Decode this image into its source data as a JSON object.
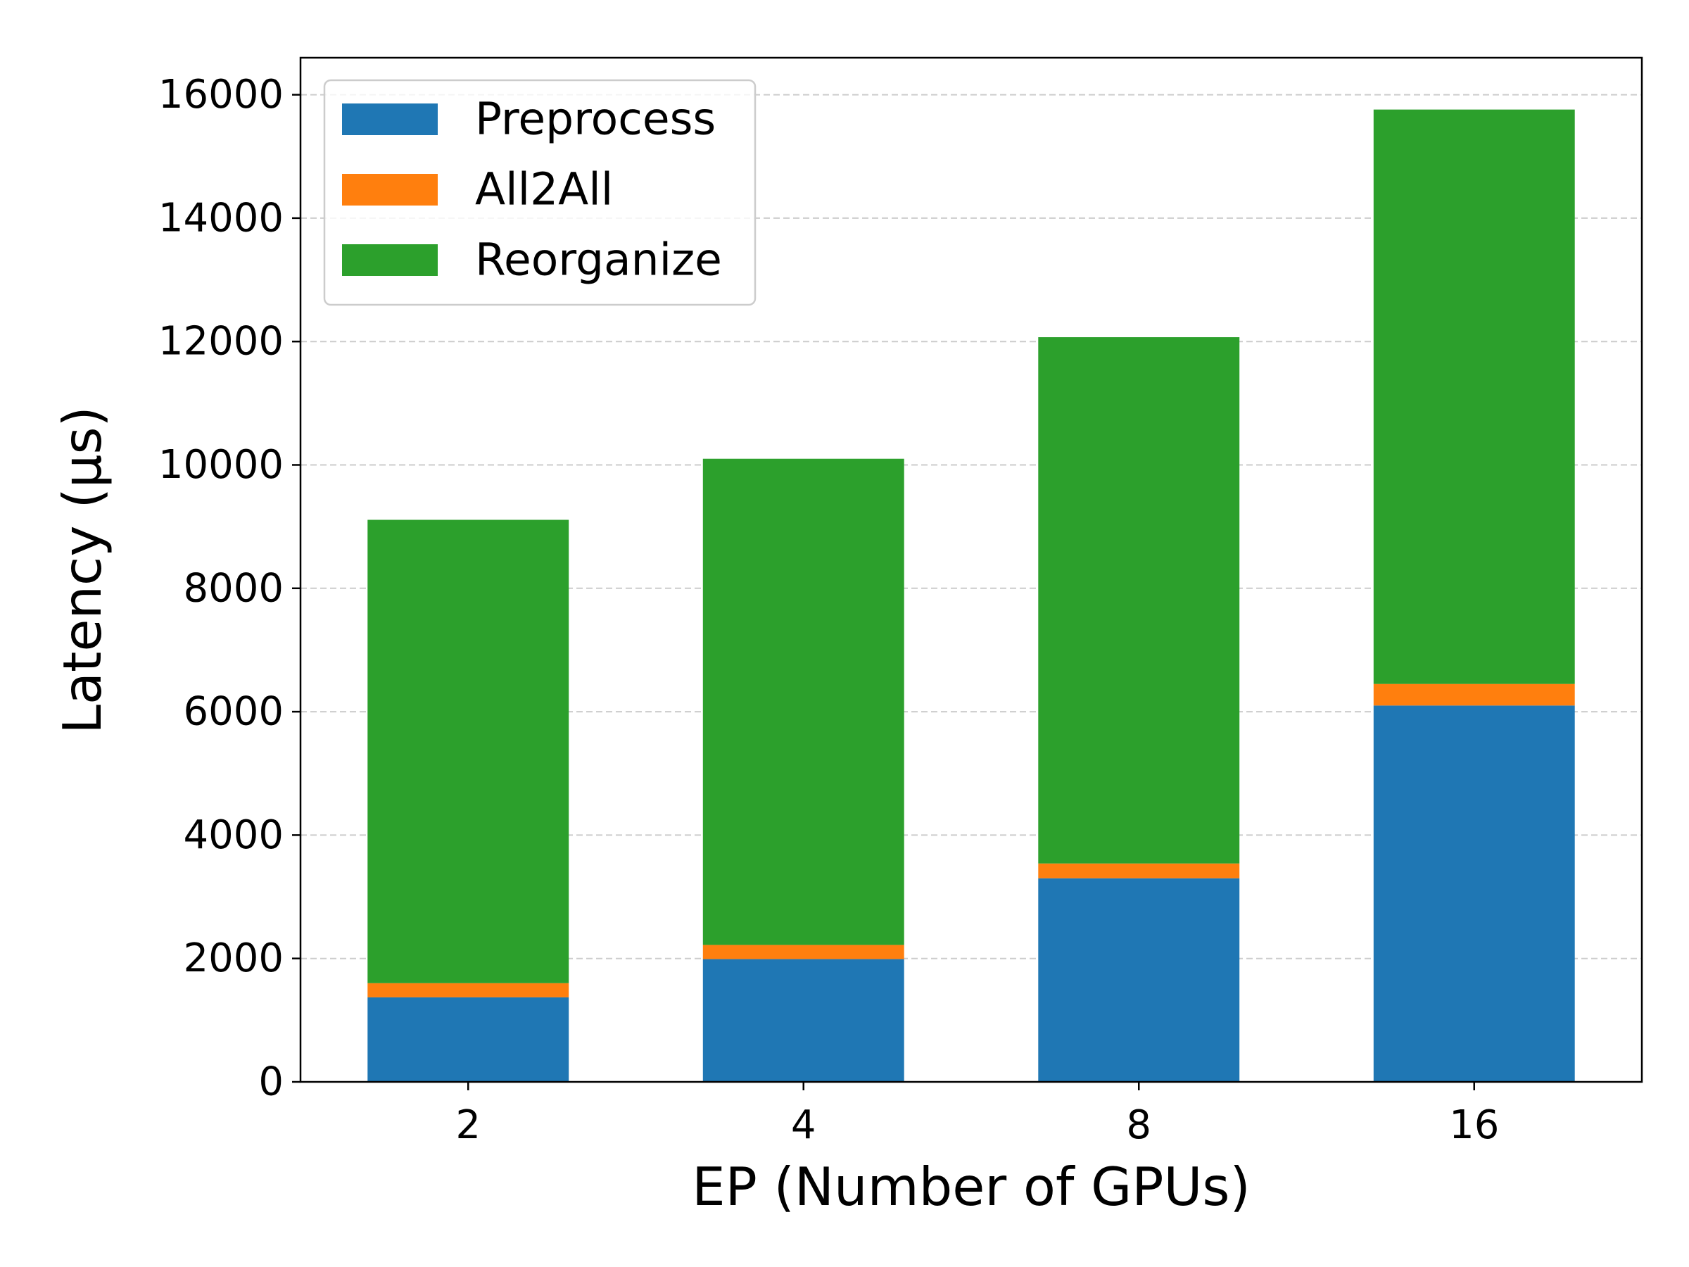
{
  "chart_data": {
    "type": "bar",
    "stacked": true,
    "title": "",
    "xlabel": "EP (Number of GPUs)",
    "ylabel": "Latency (µs)",
    "categories": [
      "2",
      "4",
      "8",
      "16"
    ],
    "series": [
      {
        "name": "Preprocess",
        "color": "#1f77b4",
        "values": [
          1370,
          1990,
          3300,
          6100
        ]
      },
      {
        "name": "All2All",
        "color": "#ff7f0e",
        "values": [
          230,
          230,
          240,
          350
        ]
      },
      {
        "name": "Reorganize",
        "color": "#2ca02c",
        "values": [
          7510,
          7880,
          8530,
          9310
        ]
      }
    ],
    "ylim": [
      0,
      16600
    ],
    "yticks": [
      0,
      2000,
      4000,
      6000,
      8000,
      10000,
      12000,
      14000,
      16000
    ],
    "ytick_labels": [
      "0",
      "2000",
      "4000",
      "6000",
      "8000",
      "10000",
      "12000",
      "14000",
      "16000"
    ],
    "grid": {
      "axis": "y",
      "style": "dashed",
      "color": "#cccccc"
    },
    "legend": {
      "position": "top-left"
    }
  }
}
